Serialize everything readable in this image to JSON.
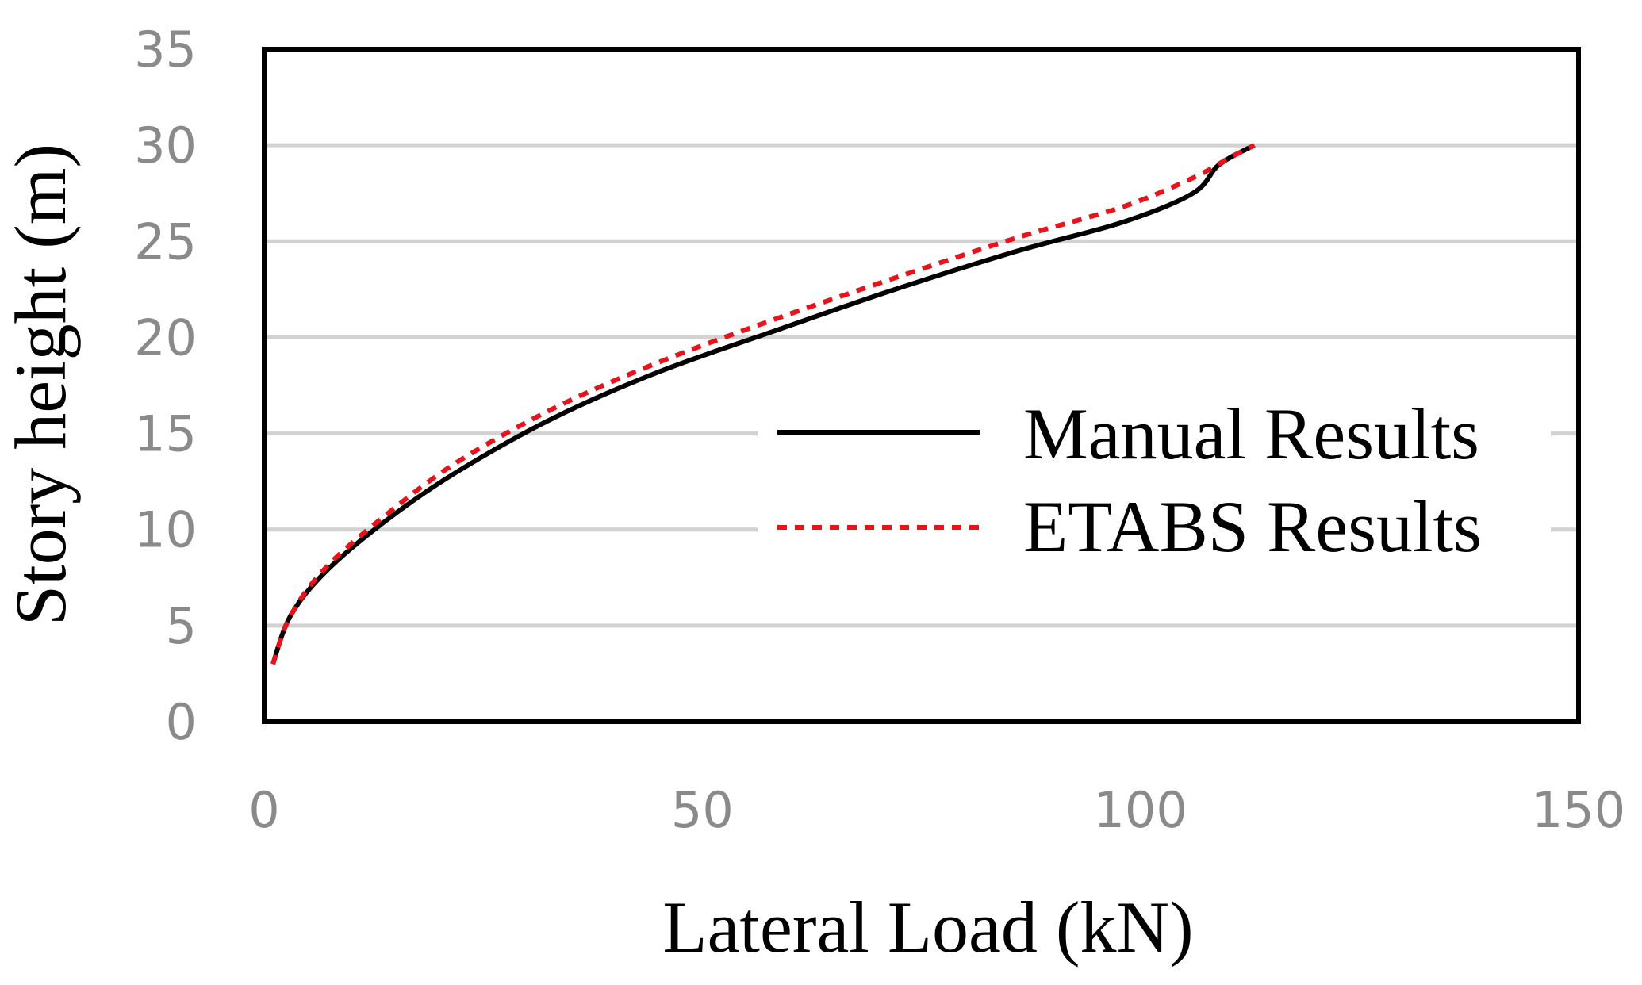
{
  "chart_data": {
    "type": "line",
    "xlabel": "Lateral Load (kN)",
    "ylabel": "Story height (m)",
    "xlim": [
      0,
      150
    ],
    "ylim": [
      0,
      35
    ],
    "x_ticks": [
      "0",
      "50",
      "100",
      "150"
    ],
    "y_ticks": [
      "0",
      "5",
      "10",
      "15",
      "20",
      "25",
      "30",
      "35"
    ],
    "grid": "horizontal",
    "legend_position": "right",
    "series": [
      {
        "name": "Manual Results",
        "color": "#000000",
        "style": "solid",
        "points": [
          [
            1,
            3
          ],
          [
            3,
            5.5
          ],
          [
            7,
            7.8
          ],
          [
            14,
            10.5
          ],
          [
            22,
            13
          ],
          [
            33,
            15.8
          ],
          [
            45,
            18.2
          ],
          [
            58,
            20.3
          ],
          [
            72,
            22.5
          ],
          [
            86,
            24.5
          ],
          [
            98,
            26
          ],
          [
            106,
            27.5
          ],
          [
            109,
            29
          ],
          [
            113,
            30
          ]
        ]
      },
      {
        "name": "ETABS Results",
        "color": "#e8141c",
        "style": "dashed",
        "points": [
          [
            1,
            3
          ],
          [
            3,
            5.5
          ],
          [
            7,
            8
          ],
          [
            14,
            10.8
          ],
          [
            22,
            13.5
          ],
          [
            33,
            16.3
          ],
          [
            45,
            18.7
          ],
          [
            58,
            20.9
          ],
          [
            72,
            23.1
          ],
          [
            86,
            25.2
          ],
          [
            98,
            26.8
          ],
          [
            106,
            28.3
          ],
          [
            110,
            29.3
          ],
          [
            113,
            30
          ]
        ]
      }
    ]
  }
}
